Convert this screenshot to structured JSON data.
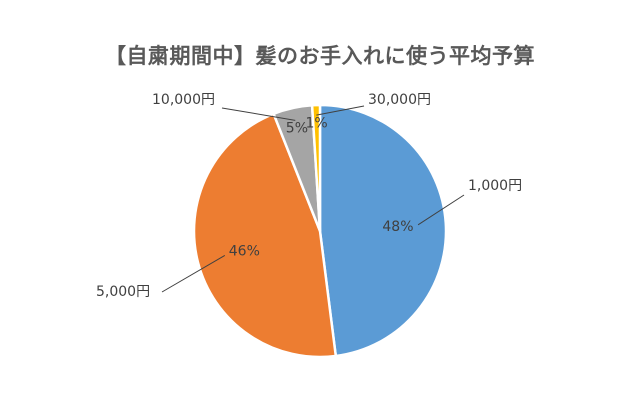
{
  "chart_data": {
    "type": "pie",
    "title": "【自粛期間中】髪のお手入れに使う平均予算",
    "categories": [
      "1,000円",
      "5,000円",
      "10,000円",
      "30,000円"
    ],
    "values": [
      48,
      46,
      5,
      1
    ],
    "value_labels": [
      "48%",
      "46%",
      "5%",
      "1%"
    ],
    "colors": [
      "#5B9BD5",
      "#ED7D31",
      "#A5A5A5",
      "#FFC000"
    ]
  }
}
